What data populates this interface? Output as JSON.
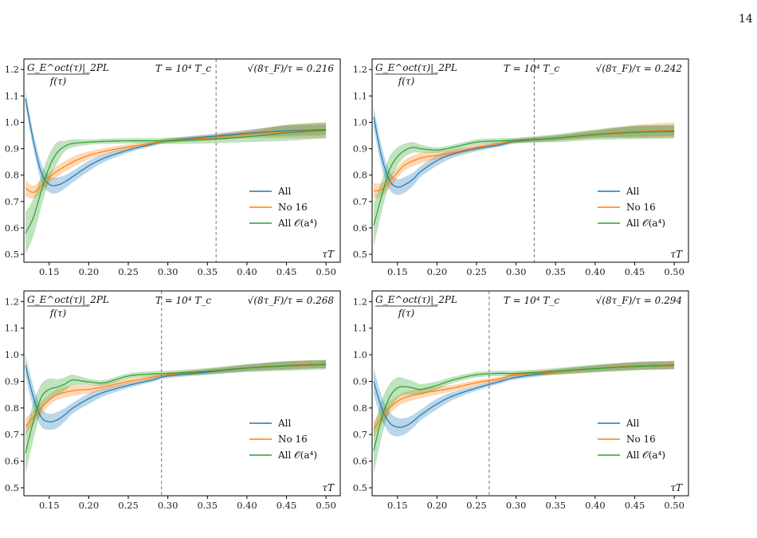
{
  "page": {
    "number": "14"
  },
  "colors": {
    "All": "#1f77b4",
    "No 16": "#ff7f0e",
    "All O(a4)": "#2ca02c",
    "vline": "#777777"
  },
  "chart_data": [
    {
      "type": "line",
      "ylabel_num": "G_E^oct(τ)|_2PL",
      "ylabel_den": "f(τ)",
      "xlabel": "τT",
      "temperature": "T = 10⁴ T_c",
      "flow_label": "√(8τ_F)/τ = 0.216",
      "vline_x": 0.361,
      "xlim": [
        0.118,
        0.518
      ],
      "ylim": [
        0.47,
        1.24
      ],
      "xticks": [
        0.15,
        0.2,
        0.25,
        0.3,
        0.35,
        0.4,
        0.45,
        0.5
      ],
      "yticks": [
        0.5,
        0.6,
        0.7,
        0.8,
        0.9,
        1.0,
        1.1,
        1.2
      ],
      "legend": [
        "All",
        "No 16",
        "All 𝒪(a⁴)"
      ],
      "legend_position": "lower-right",
      "series": [
        {
          "name": "All",
          "x": [
            0.12,
            0.13,
            0.14,
            0.15,
            0.16,
            0.17,
            0.18,
            0.2,
            0.22,
            0.25,
            0.28,
            0.3,
            0.35,
            0.4,
            0.45,
            0.5
          ],
          "y": [
            1.09,
            0.93,
            0.81,
            0.765,
            0.762,
            0.775,
            0.795,
            0.835,
            0.865,
            0.895,
            0.917,
            0.93,
            0.945,
            0.958,
            0.968,
            0.972
          ],
          "err": [
            0.03,
            0.03,
            0.035,
            0.03,
            0.03,
            0.025,
            0.022,
            0.02,
            0.015,
            0.01,
            0.008,
            0.008,
            0.01,
            0.013,
            0.02,
            0.02
          ]
        },
        {
          "name": "No 16",
          "x": [
            0.12,
            0.13,
            0.14,
            0.15,
            0.16,
            0.18,
            0.2,
            0.22,
            0.25,
            0.28,
            0.3,
            0.35,
            0.4,
            0.45,
            0.5
          ],
          "y": [
            0.75,
            0.735,
            0.76,
            0.79,
            0.815,
            0.85,
            0.875,
            0.89,
            0.907,
            0.92,
            0.93,
            0.94,
            0.955,
            0.965,
            0.97
          ],
          "err": [
            0.03,
            0.025,
            0.025,
            0.02,
            0.02,
            0.02,
            0.015,
            0.012,
            0.01,
            0.008,
            0.008,
            0.01,
            0.015,
            0.025,
            0.03
          ]
        },
        {
          "name": "All O(a4)",
          "x": [
            0.12,
            0.13,
            0.14,
            0.15,
            0.16,
            0.17,
            0.18,
            0.2,
            0.22,
            0.25,
            0.28,
            0.3,
            0.35,
            0.4,
            0.45,
            0.5
          ],
          "y": [
            0.58,
            0.64,
            0.74,
            0.83,
            0.885,
            0.91,
            0.92,
            0.925,
            0.928,
            0.93,
            0.93,
            0.93,
            0.935,
            0.945,
            0.96,
            0.97
          ],
          "err": [
            0.08,
            0.07,
            0.06,
            0.05,
            0.04,
            0.02,
            0.015,
            0.01,
            0.01,
            0.01,
            0.01,
            0.012,
            0.015,
            0.02,
            0.03,
            0.03
          ]
        }
      ]
    },
    {
      "type": "line",
      "ylabel_num": "G_E^oct(τ)|_2PL",
      "ylabel_den": "f(τ)",
      "xlabel": "τT",
      "temperature": "T = 10⁴ T_c",
      "flow_label": "√(8τ_F)/τ = 0.242",
      "vline_x": 0.323,
      "xlim": [
        0.118,
        0.518
      ],
      "ylim": [
        0.47,
        1.24
      ],
      "xticks": [
        0.15,
        0.2,
        0.25,
        0.3,
        0.35,
        0.4,
        0.45,
        0.5
      ],
      "yticks": [
        0.5,
        0.6,
        0.7,
        0.8,
        0.9,
        1.0,
        1.1,
        1.2
      ],
      "legend": [
        "All",
        "No 16",
        "All 𝒪(a⁴)"
      ],
      "legend_position": "lower-right",
      "series": [
        {
          "name": "All",
          "x": [
            0.12,
            0.13,
            0.14,
            0.15,
            0.16,
            0.17,
            0.18,
            0.2,
            0.22,
            0.25,
            0.28,
            0.3,
            0.35,
            0.4,
            0.45,
            0.5
          ],
          "y": [
            1.02,
            0.87,
            0.78,
            0.755,
            0.765,
            0.785,
            0.815,
            0.855,
            0.88,
            0.9,
            0.915,
            0.928,
            0.94,
            0.955,
            0.965,
            0.968
          ],
          "err": [
            0.04,
            0.04,
            0.035,
            0.03,
            0.03,
            0.025,
            0.02,
            0.02,
            0.015,
            0.01,
            0.008,
            0.008,
            0.01,
            0.013,
            0.02,
            0.02
          ]
        },
        {
          "name": "No 16",
          "x": [
            0.12,
            0.13,
            0.14,
            0.15,
            0.16,
            0.18,
            0.2,
            0.22,
            0.25,
            0.28,
            0.3,
            0.35,
            0.4,
            0.45,
            0.5
          ],
          "y": [
            0.74,
            0.745,
            0.775,
            0.81,
            0.84,
            0.865,
            0.875,
            0.885,
            0.905,
            0.92,
            0.93,
            0.94,
            0.955,
            0.965,
            0.97
          ],
          "err": [
            0.03,
            0.025,
            0.025,
            0.02,
            0.02,
            0.02,
            0.015,
            0.012,
            0.01,
            0.008,
            0.008,
            0.01,
            0.015,
            0.025,
            0.03
          ]
        },
        {
          "name": "All O(a4)",
          "x": [
            0.12,
            0.13,
            0.14,
            0.15,
            0.16,
            0.17,
            0.18,
            0.2,
            0.22,
            0.25,
            0.28,
            0.3,
            0.35,
            0.4,
            0.45,
            0.5
          ],
          "y": [
            0.61,
            0.72,
            0.82,
            0.87,
            0.895,
            0.905,
            0.9,
            0.895,
            0.905,
            0.925,
            0.93,
            0.932,
            0.94,
            0.953,
            0.962,
            0.965
          ],
          "err": [
            0.08,
            0.06,
            0.05,
            0.035,
            0.025,
            0.02,
            0.015,
            0.01,
            0.01,
            0.01,
            0.01,
            0.01,
            0.015,
            0.02,
            0.025,
            0.025
          ]
        }
      ]
    },
    {
      "type": "line",
      "ylabel_num": "G_E^oct(τ)|_2PL",
      "ylabel_den": "f(τ)",
      "xlabel": "τT",
      "temperature": "T = 10⁴ T_c",
      "flow_label": "√(8τ_F)/τ = 0.268",
      "vline_x": 0.292,
      "xlim": [
        0.118,
        0.518
      ],
      "ylim": [
        0.47,
        1.24
      ],
      "xticks": [
        0.15,
        0.2,
        0.25,
        0.3,
        0.35,
        0.4,
        0.45,
        0.5
      ],
      "yticks": [
        0.5,
        0.6,
        0.7,
        0.8,
        0.9,
        1.0,
        1.1,
        1.2
      ],
      "legend": [
        "All",
        "No 16",
        "All 𝒪(a⁴)"
      ],
      "legend_position": "lower-right",
      "series": [
        {
          "name": "All",
          "x": [
            0.12,
            0.13,
            0.14,
            0.15,
            0.16,
            0.17,
            0.18,
            0.2,
            0.22,
            0.25,
            0.28,
            0.3,
            0.35,
            0.4,
            0.45,
            0.5
          ],
          "y": [
            0.96,
            0.84,
            0.765,
            0.748,
            0.755,
            0.775,
            0.8,
            0.835,
            0.86,
            0.885,
            0.905,
            0.92,
            0.935,
            0.95,
            0.96,
            0.965
          ],
          "err": [
            0.04,
            0.04,
            0.035,
            0.03,
            0.03,
            0.025,
            0.02,
            0.02,
            0.015,
            0.01,
            0.008,
            0.008,
            0.01,
            0.012,
            0.015,
            0.015
          ]
        },
        {
          "name": "No 16",
          "x": [
            0.12,
            0.13,
            0.14,
            0.15,
            0.16,
            0.18,
            0.2,
            0.22,
            0.25,
            0.28,
            0.3,
            0.35,
            0.4,
            0.45,
            0.5
          ],
          "y": [
            0.73,
            0.765,
            0.8,
            0.83,
            0.85,
            0.865,
            0.87,
            0.88,
            0.9,
            0.915,
            0.925,
            0.938,
            0.95,
            0.96,
            0.965
          ],
          "err": [
            0.03,
            0.025,
            0.025,
            0.02,
            0.02,
            0.02,
            0.015,
            0.012,
            0.01,
            0.008,
            0.008,
            0.01,
            0.012,
            0.015,
            0.015
          ]
        },
        {
          "name": "All O(a4)",
          "x": [
            0.12,
            0.13,
            0.14,
            0.15,
            0.16,
            0.17,
            0.18,
            0.2,
            0.22,
            0.25,
            0.28,
            0.3,
            0.35,
            0.4,
            0.45,
            0.5
          ],
          "y": [
            0.63,
            0.75,
            0.84,
            0.87,
            0.878,
            0.89,
            0.905,
            0.898,
            0.895,
            0.92,
            0.928,
            0.93,
            0.938,
            0.95,
            0.958,
            0.963
          ],
          "err": [
            0.08,
            0.07,
            0.05,
            0.04,
            0.03,
            0.025,
            0.02,
            0.012,
            0.01,
            0.01,
            0.01,
            0.01,
            0.012,
            0.015,
            0.018,
            0.018
          ]
        }
      ]
    },
    {
      "type": "line",
      "ylabel_num": "G_E^oct(τ)|_2PL",
      "ylabel_den": "f(τ)",
      "xlabel": "τT",
      "temperature": "T = 10⁴ T_c",
      "flow_label": "√(8τ_F)/τ = 0.294",
      "vline_x": 0.266,
      "xlim": [
        0.118,
        0.518
      ],
      "ylim": [
        0.47,
        1.24
      ],
      "xticks": [
        0.15,
        0.2,
        0.25,
        0.3,
        0.35,
        0.4,
        0.45,
        0.5
      ],
      "yticks": [
        0.5,
        0.6,
        0.7,
        0.8,
        0.9,
        1.0,
        1.1,
        1.2
      ],
      "legend": [
        "All",
        "No 16",
        "All 𝒪(a⁴)"
      ],
      "legend_position": "lower-right",
      "series": [
        {
          "name": "All",
          "x": [
            0.12,
            0.13,
            0.14,
            0.15,
            0.16,
            0.17,
            0.18,
            0.2,
            0.22,
            0.25,
            0.28,
            0.3,
            0.35,
            0.4,
            0.45,
            0.5
          ],
          "y": [
            0.9,
            0.8,
            0.745,
            0.728,
            0.732,
            0.75,
            0.775,
            0.815,
            0.845,
            0.875,
            0.9,
            0.915,
            0.935,
            0.948,
            0.958,
            0.962
          ],
          "err": [
            0.05,
            0.045,
            0.04,
            0.035,
            0.03,
            0.025,
            0.02,
            0.02,
            0.015,
            0.01,
            0.008,
            0.008,
            0.01,
            0.012,
            0.015,
            0.015
          ]
        },
        {
          "name": "No 16",
          "x": [
            0.12,
            0.13,
            0.14,
            0.15,
            0.16,
            0.18,
            0.2,
            0.22,
            0.25,
            0.28,
            0.3,
            0.35,
            0.4,
            0.45,
            0.5
          ],
          "y": [
            0.72,
            0.765,
            0.8,
            0.825,
            0.84,
            0.855,
            0.865,
            0.875,
            0.895,
            0.91,
            0.925,
            0.935,
            0.948,
            0.958,
            0.962
          ],
          "err": [
            0.03,
            0.025,
            0.025,
            0.02,
            0.02,
            0.018,
            0.015,
            0.012,
            0.01,
            0.008,
            0.008,
            0.01,
            0.012,
            0.015,
            0.015
          ]
        },
        {
          "name": "All O(a4)",
          "x": [
            0.12,
            0.13,
            0.14,
            0.15,
            0.16,
            0.17,
            0.18,
            0.2,
            0.22,
            0.25,
            0.28,
            0.3,
            0.35,
            0.4,
            0.45,
            0.5
          ],
          "y": [
            0.64,
            0.76,
            0.84,
            0.875,
            0.88,
            0.875,
            0.87,
            0.885,
            0.905,
            0.925,
            0.93,
            0.93,
            0.938,
            0.948,
            0.956,
            0.96
          ],
          "err": [
            0.09,
            0.07,
            0.05,
            0.04,
            0.03,
            0.025,
            0.02,
            0.015,
            0.012,
            0.01,
            0.01,
            0.01,
            0.012,
            0.015,
            0.015,
            0.015
          ]
        }
      ]
    }
  ]
}
